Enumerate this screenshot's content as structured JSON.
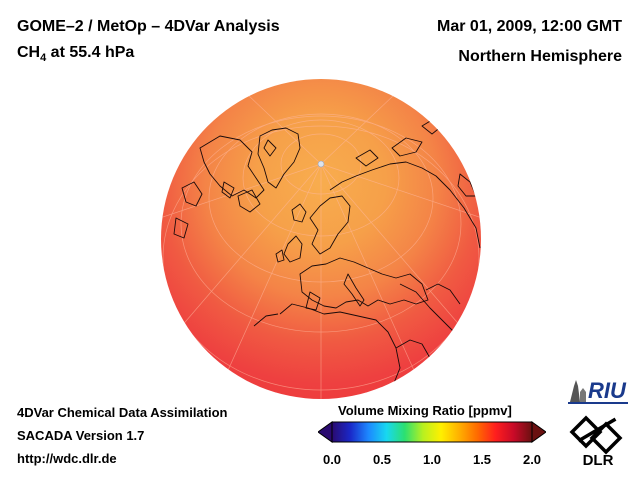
{
  "header": {
    "title_line1": "GOME–2 / MetOp – 4DVar Analysis",
    "species_prefix": "CH",
    "species_subscript": "4",
    "species_suffix": " at 55.4 hPa",
    "date": "Mar 01, 2009, 12:00 GMT",
    "hemisphere": "Northern Hemisphere"
  },
  "footer": {
    "line1": "4DVar Chemical Data Assimilation",
    "line2": "SACADA Version 1.7",
    "line3": "http://wdc.dlr.de"
  },
  "colorbar": {
    "title": "Volume Mixing Ratio [ppmv]",
    "ticks": [
      "0.0",
      "0.5",
      "1.0",
      "1.5",
      "2.0"
    ],
    "range": [
      0.0,
      2.0
    ],
    "colors": [
      "#2a0a70",
      "#1a28c8",
      "#1c88ff",
      "#18d8f0",
      "#2ce070",
      "#b8f020",
      "#fff000",
      "#ffb000",
      "#ff6a00",
      "#ff1e1e",
      "#c80a28",
      "#6a1010"
    ]
  },
  "map": {
    "projection": "orthographic north-polar",
    "field_min_ppmv": 1.5,
    "field_max_ppmv": 1.75,
    "polar_color": "#f7a64a",
    "midlat_color": "#f26a44",
    "tropical_color": "#ee3a3a"
  },
  "logos": {
    "riu": "RIU",
    "dlr": "DLR"
  }
}
